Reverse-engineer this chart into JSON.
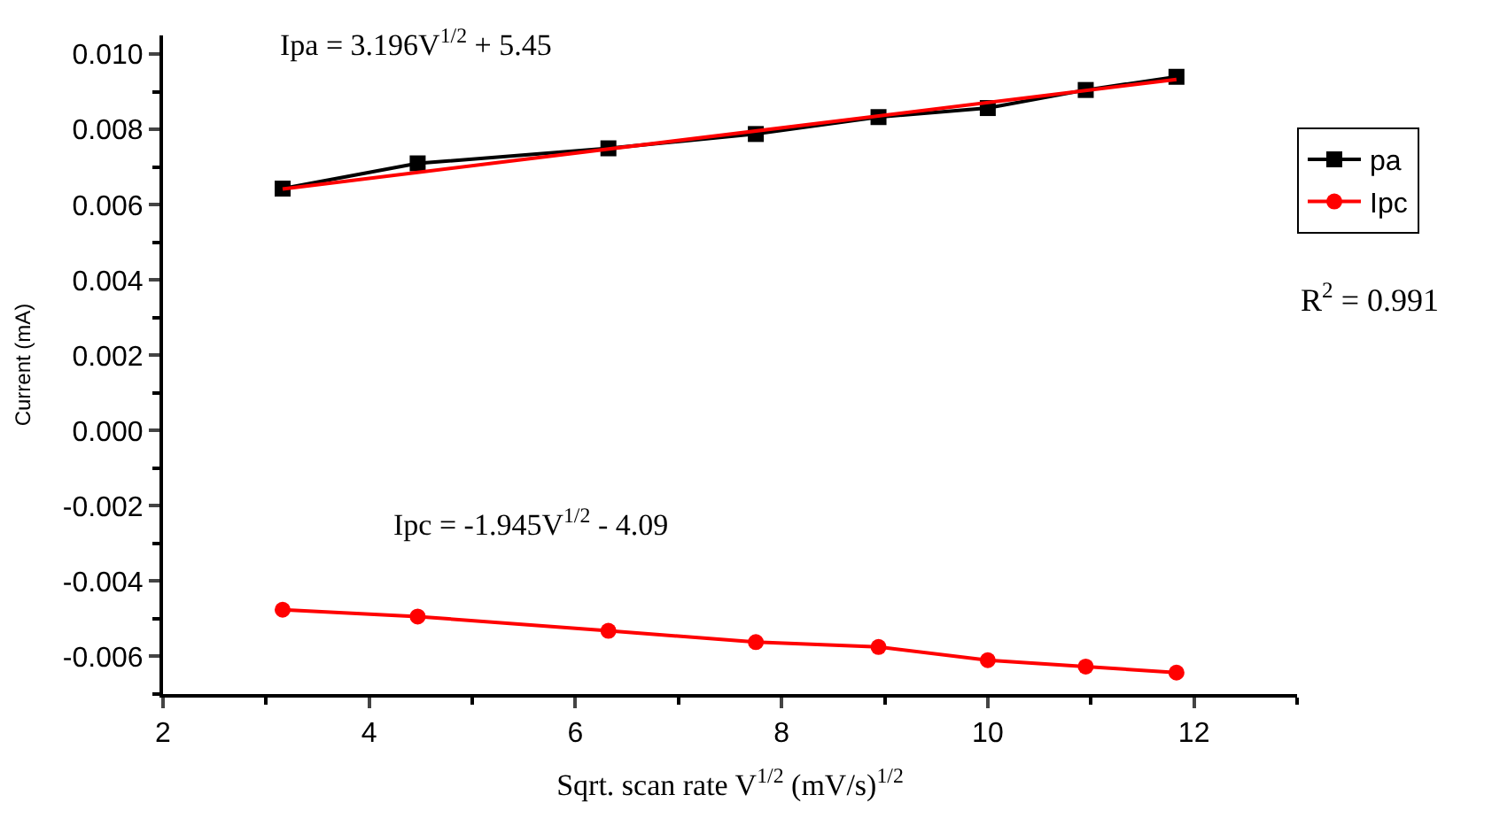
{
  "chart_data": {
    "type": "line",
    "xlabel": "Sqrt. scan rate V$^{1/2}$ (mV/s)$^{1/2}$",
    "ylabel": "Current (mA)",
    "annotations": [
      "Ipa = 3.196V$^{1/2}$ + 5.45",
      "Ipc = -1.945V$^{1/2}$ - 4.09",
      "R$^{2}$ = 0.991"
    ],
    "x": [
      3.16,
      4.47,
      6.32,
      7.75,
      8.94,
      10.0,
      10.95,
      11.83
    ],
    "series": [
      {
        "name": "pa",
        "color": "#000000",
        "marker": "square",
        "values": [
          0.00643,
          0.0071,
          0.0075,
          0.00788,
          0.00833,
          0.00857,
          0.00905,
          0.0094
        ]
      },
      {
        "name": "Ipc",
        "color": "#ff0000",
        "marker": "circle",
        "values": [
          -0.00476,
          -0.00494,
          -0.00532,
          -0.00562,
          -0.00575,
          -0.0061,
          -0.00627,
          -0.00643
        ]
      },
      {
        "color": "#ff0000",
        "marker": "none",
        "x": [
          3.16,
          11.83
        ],
        "values": [
          0.00642,
          0.00933
        ]
      }
    ],
    "xlim": [
      2,
      13
    ],
    "xticks": [
      2,
      4,
      6,
      8,
      10,
      12
    ],
    "ylim": [
      -0.007,
      0.0105
    ],
    "yticks": [
      {
        "value": 0.01,
        "label": "0.010"
      },
      {
        "value": 0.008,
        "label": "0.008"
      },
      {
        "value": 0.006,
        "label": "0.006"
      },
      {
        "value": 0.004,
        "label": "0.004"
      },
      {
        "value": 0.002,
        "label": "0.002"
      },
      {
        "value": 0,
        "label": "0.000"
      },
      {
        "value": -0.002,
        "label": "-0.002"
      },
      {
        "value": -0.004,
        "label": "-0.004"
      },
      {
        "value": -0.006,
        "label": "-0.006"
      }
    ],
    "legend": "top right"
  }
}
